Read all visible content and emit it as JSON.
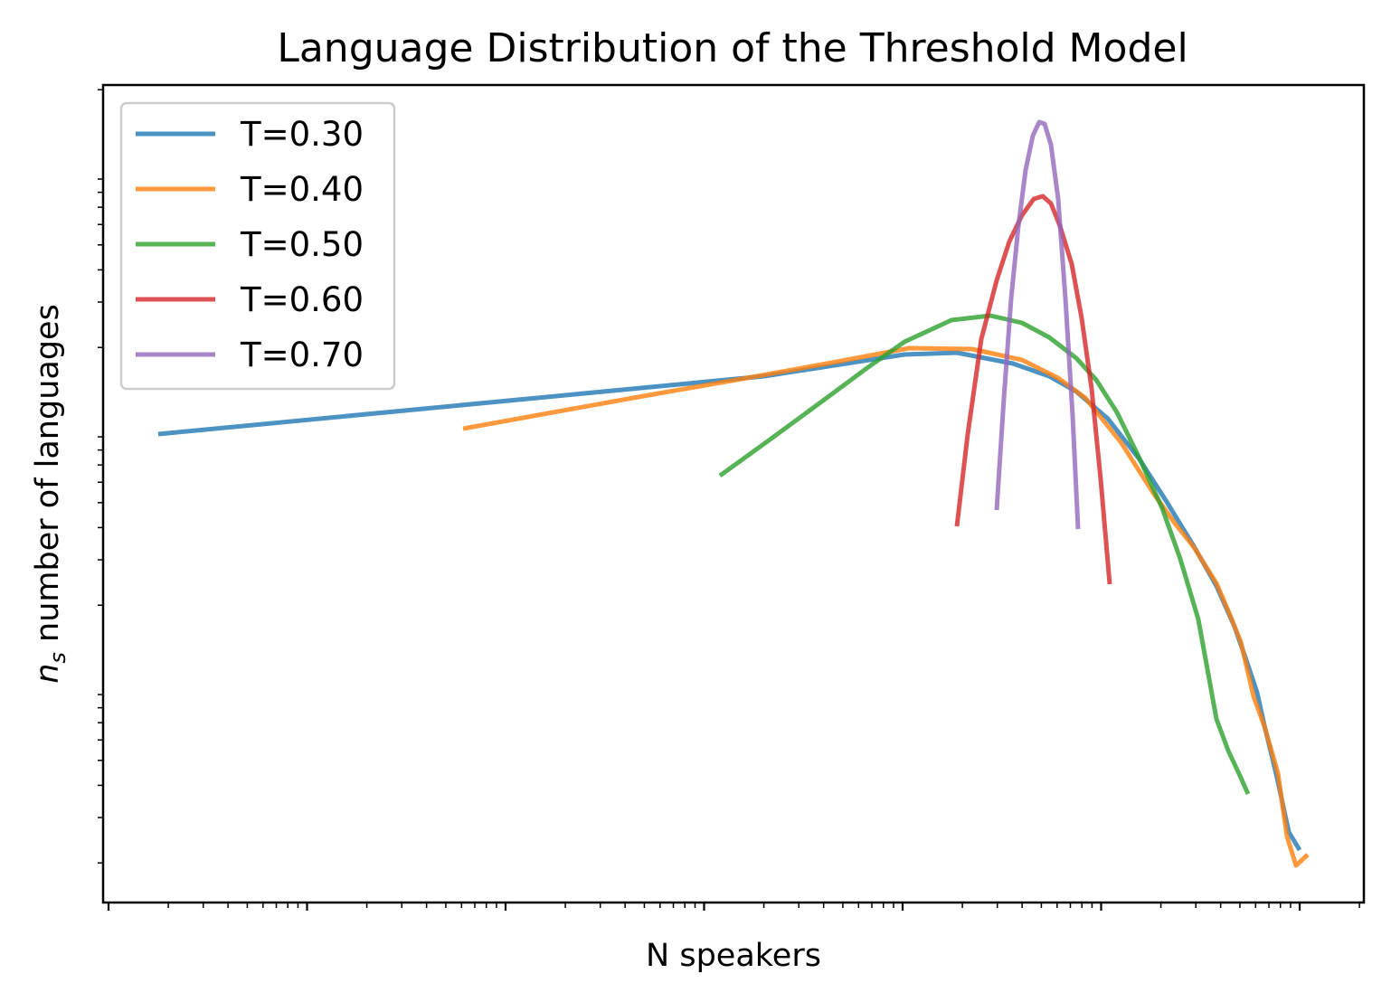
{
  "chart_data": {
    "type": "line",
    "title": "Language Distribution of the Threshold Model",
    "xlabel": "N speakers",
    "ylabel_main": "n",
    "ylabel_sub": "s",
    "ylabel_rest": " number of languages",
    "xscale": "log",
    "yscale": "log",
    "x_tick_labels_shown": false,
    "y_tick_labels_shown": false,
    "grid": false,
    "legend_position": "upper-left",
    "series": [
      {
        "name": "T=0.30",
        "color": "#1f77b4",
        "points": [
          [
            175,
            480
          ],
          [
            845,
            416
          ],
          [
            1000,
            392
          ],
          [
            1058,
            390
          ],
          [
            1120,
            402
          ],
          [
            1160,
            416
          ],
          [
            1190,
            433
          ],
          [
            1225,
            463
          ],
          [
            1260,
            508
          ],
          [
            1290,
            555
          ],
          [
            1320,
            604
          ],
          [
            1345,
            648
          ],
          [
            1365,
            693
          ],
          [
            1378,
            730
          ],
          [
            1390,
            766
          ],
          [
            1398,
            802
          ],
          [
            1412,
            860
          ],
          [
            1425,
            920
          ],
          [
            1437,
            940
          ]
        ]
      },
      {
        "name": "T=0.40",
        "color": "#ff7f0e",
        "points": [
          [
            512,
            474
          ],
          [
            700,
            440
          ],
          [
            820,
            419
          ],
          [
            920,
            401
          ],
          [
            1005,
            385
          ],
          [
            1075,
            386
          ],
          [
            1130,
            398
          ],
          [
            1170,
            418
          ],
          [
            1200,
            440
          ],
          [
            1240,
            490
          ],
          [
            1275,
            545
          ],
          [
            1300,
            580
          ],
          [
            1320,
            605
          ],
          [
            1345,
            645
          ],
          [
            1360,
            680
          ],
          [
            1372,
            710
          ],
          [
            1386,
            770
          ],
          [
            1398,
            803
          ],
          [
            1413,
            855
          ],
          [
            1423,
            925
          ],
          [
            1433,
            957
          ],
          [
            1446,
            945
          ]
        ]
      },
      {
        "name": "T=0.50",
        "color": "#2ca02c",
        "points": [
          [
            796,
            526
          ],
          [
            850,
            487
          ],
          [
            910,
            443
          ],
          [
            960,
            406
          ],
          [
            1000,
            378
          ],
          [
            1052,
            354
          ],
          [
            1095,
            349
          ],
          [
            1130,
            357
          ],
          [
            1160,
            373
          ],
          [
            1190,
            396
          ],
          [
            1212,
            420
          ],
          [
            1235,
            456
          ],
          [
            1260,
            507
          ],
          [
            1285,
            562
          ],
          [
            1305,
            618
          ],
          [
            1325,
            685
          ],
          [
            1345,
            795
          ],
          [
            1358,
            830
          ],
          [
            1372,
            860
          ],
          [
            1380,
            878
          ]
        ]
      },
      {
        "name": "T=0.60",
        "color": "#d62728",
        "points": [
          [
            1058,
            582
          ],
          [
            1070,
            480
          ],
          [
            1085,
            375
          ],
          [
            1102,
            310
          ],
          [
            1116,
            267
          ],
          [
            1130,
            238
          ],
          [
            1143,
            220
          ],
          [
            1153,
            217
          ],
          [
            1162,
            225
          ],
          [
            1172,
            250
          ],
          [
            1185,
            292
          ],
          [
            1196,
            352
          ],
          [
            1207,
            430
          ],
          [
            1217,
            530
          ],
          [
            1227,
            646
          ]
        ]
      },
      {
        "name": "T=0.70",
        "color": "#9467bd",
        "points": [
          [
            1102,
            564
          ],
          [
            1110,
            440
          ],
          [
            1118,
            330
          ],
          [
            1126,
            250
          ],
          [
            1134,
            188
          ],
          [
            1142,
            150
          ],
          [
            1149,
            135
          ],
          [
            1155,
            137
          ],
          [
            1162,
            160
          ],
          [
            1170,
            220
          ],
          [
            1178,
            330
          ],
          [
            1186,
            460
          ],
          [
            1192,
            585
          ]
        ]
      }
    ]
  }
}
